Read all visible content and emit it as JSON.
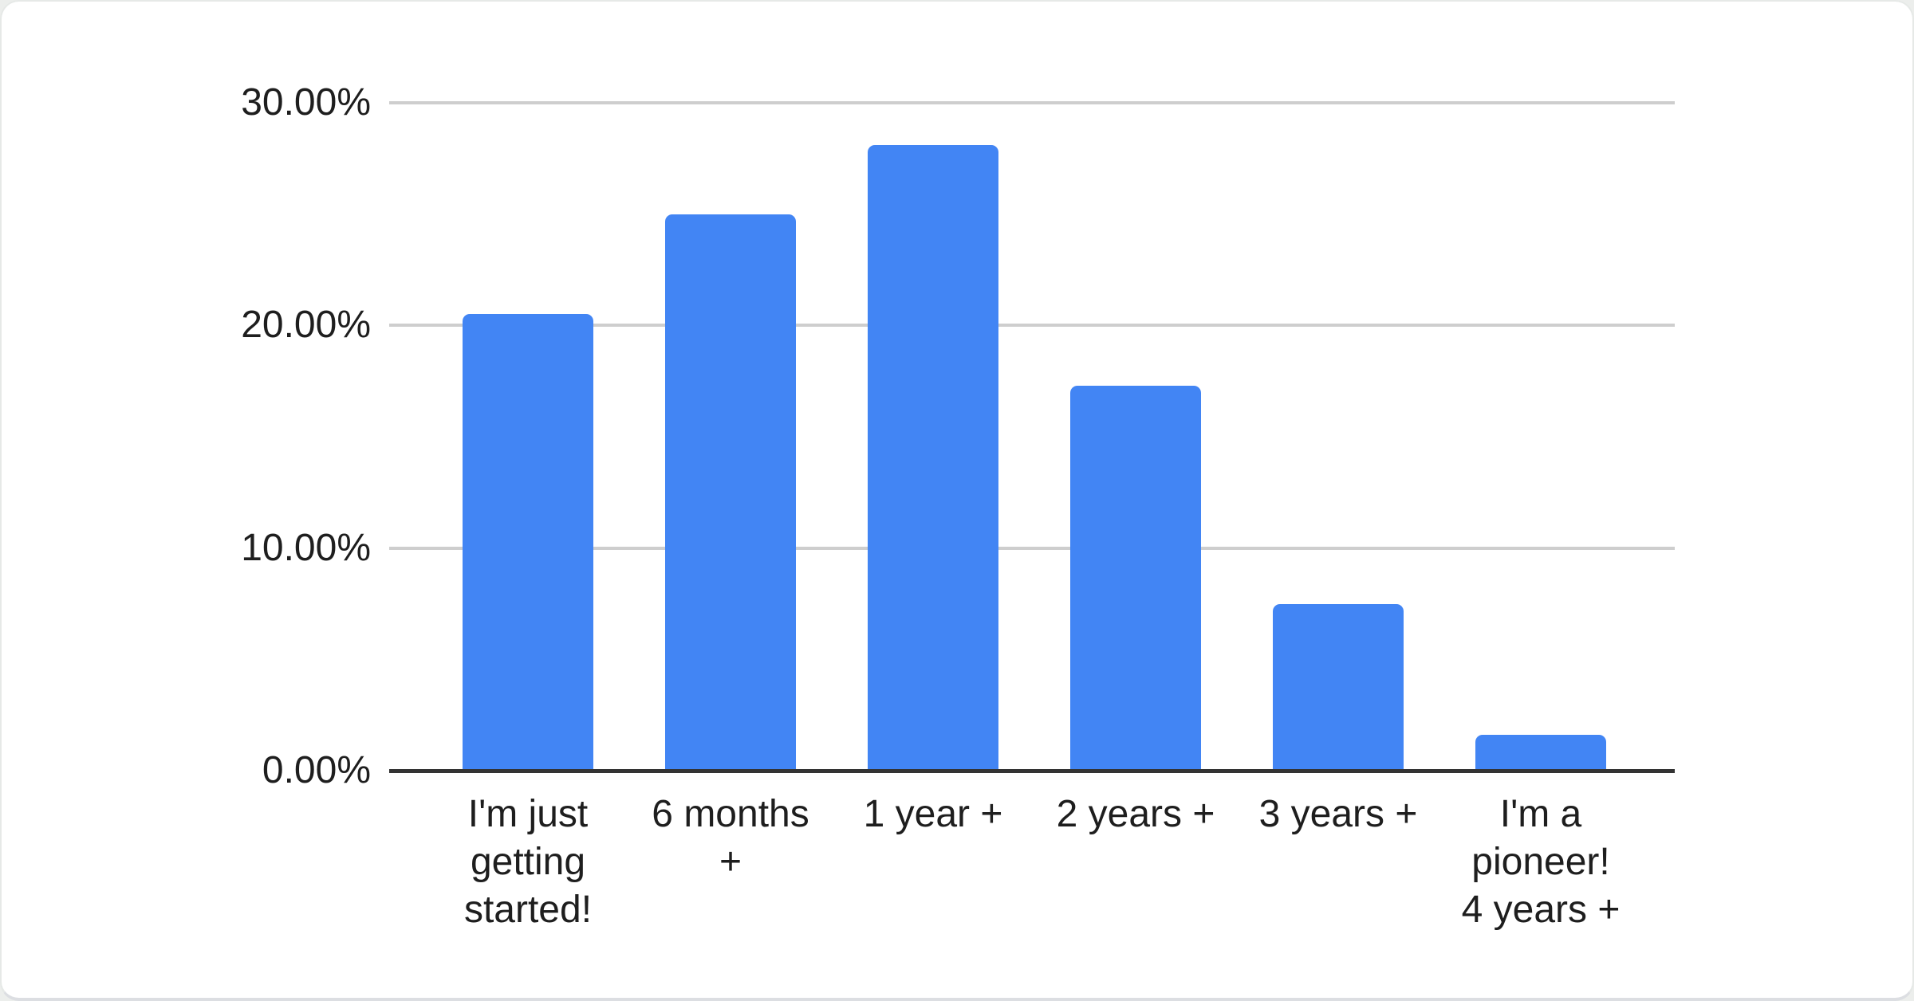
{
  "page": {
    "background": "#eceeec"
  },
  "card": {
    "background": "#ffffff",
    "border_color": "#e6e9e7"
  },
  "chart_data": {
    "type": "bar",
    "title": "",
    "xlabel": "",
    "ylabel": "",
    "unit": "%",
    "categories": [
      "I'm just getting started!",
      "6 months +",
      "1 year +",
      "2 years +",
      "3 years +",
      "I'm a pioneer! 4 years +"
    ],
    "category_lines": [
      [
        "I'm just",
        "getting",
        "started!"
      ],
      [
        "6 months",
        "+"
      ],
      [
        "1 year +"
      ],
      [
        "2 years +"
      ],
      [
        "3 years +"
      ],
      [
        "I'm a",
        "pioneer!",
        "4 years +"
      ]
    ],
    "values": [
      20.5,
      25.0,
      28.1,
      17.3,
      7.5,
      1.6
    ],
    "ylim": [
      0,
      30
    ],
    "yticks": [
      {
        "value": 0,
        "label": "0.00%"
      },
      {
        "value": 10,
        "label": "10.00%"
      },
      {
        "value": 20,
        "label": "20.00%"
      },
      {
        "value": 30,
        "label": "30.00%"
      }
    ],
    "grid": true,
    "legend": "none",
    "bar_color": "#4285f4",
    "gridline_color": "#cecece",
    "axis_line_color": "#333333",
    "label_color": "#1e1e1e"
  }
}
